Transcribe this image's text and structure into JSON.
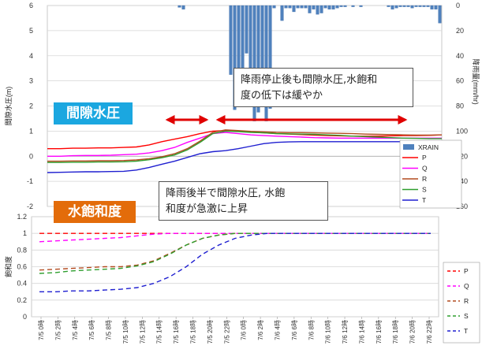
{
  "colors": {
    "rain": "#4F81BD",
    "P": "#FF0000",
    "Q": "#FF00FF",
    "R": "#B24A1E",
    "S": "#2E9E2E",
    "T": "#1F1FD0",
    "arrow": "#E00000",
    "badge_pressure": "#1BA7E0",
    "badge_saturation": "#E36C0A"
  },
  "annotations": {
    "badge_pressure": "間隙水圧",
    "badge_saturation": "水飽和度",
    "note_top_line1": "降雨停止後も間隙水圧,水飽和",
    "note_top_line2": "度の低下は緩やか",
    "note_bottom_line1": "降雨後半で間隙水圧, 水飽",
    "note_bottom_line2": "和度が急激に上昇"
  },
  "chart_data": [
    {
      "type": "line",
      "panel": "pore_pressure",
      "ylabel": "間隙水圧(m)",
      "ylabel2": "降雨量(mm/hr)",
      "ylim": [
        -2,
        6
      ],
      "yticks": [
        -2,
        -1,
        0,
        1,
        2,
        3,
        4,
        5,
        6
      ],
      "y2lim": [
        0,
        160
      ],
      "y2ticks": [
        0,
        20,
        40,
        60,
        80,
        100,
        120,
        140,
        160
      ],
      "rain_series_name": "XRAIN",
      "rain": [
        0,
        0,
        0,
        0,
        0,
        0,
        0,
        0,
        0,
        0,
        0,
        0,
        0,
        0,
        0,
        0,
        0,
        0,
        0,
        0,
        0,
        0,
        0,
        0,
        0,
        0,
        0,
        0,
        0,
        0,
        0,
        0,
        0,
        1.5,
        3,
        0,
        0,
        0,
        0,
        0,
        0,
        0,
        0,
        0,
        0,
        0,
        55,
        83,
        55,
        60,
        38,
        58,
        92,
        85,
        80,
        92,
        82,
        2,
        0,
        12,
        2,
        2,
        5,
        2,
        2,
        2,
        6,
        3,
        7,
        6,
        2,
        3,
        3,
        2,
        1,
        1,
        0,
        1,
        0,
        1,
        0,
        0,
        0,
        0,
        0,
        0,
        1,
        3,
        2,
        1,
        1,
        1,
        2,
        1,
        1,
        1,
        1,
        3,
        3,
        14
      ],
      "series": [
        {
          "name": "P",
          "y": [
            0.3,
            0.3,
            0.32,
            0.32,
            0.33,
            0.33,
            0.35,
            0.37,
            0.45,
            0.58,
            0.68,
            0.78,
            0.9,
            1.0,
            1.02,
            1.0,
            0.96,
            0.93,
            0.9,
            0.88,
            0.86,
            0.84,
            0.82,
            0.81,
            0.8,
            0.8,
            0.8,
            0.81,
            0.82,
            0.82,
            0.83,
            0.85
          ]
        },
        {
          "name": "Q",
          "y": [
            0.0,
            0.0,
            0.02,
            0.03,
            0.03,
            0.04,
            0.06,
            0.08,
            0.13,
            0.22,
            0.35,
            0.55,
            0.72,
            0.9,
            0.95,
            0.9,
            0.85,
            0.82,
            0.8,
            0.78,
            0.76,
            0.74,
            0.73,
            0.72,
            0.72,
            0.72,
            0.72,
            0.72,
            0.72,
            0.72,
            0.72,
            0.72
          ]
        },
        {
          "name": "R",
          "y": [
            -0.2,
            -0.2,
            -0.19,
            -0.19,
            -0.18,
            -0.18,
            -0.17,
            -0.15,
            -0.1,
            -0.02,
            0.1,
            0.3,
            0.6,
            0.95,
            1.05,
            1.02,
            0.99,
            0.97,
            0.95,
            0.94,
            0.94,
            0.93,
            0.92,
            0.91,
            0.9,
            0.88,
            0.87,
            0.86,
            0.85,
            0.84,
            0.84,
            0.85
          ]
        },
        {
          "name": "S",
          "y": [
            -0.25,
            -0.25,
            -0.24,
            -0.24,
            -0.23,
            -0.23,
            -0.22,
            -0.2,
            -0.14,
            -0.06,
            0.05,
            0.25,
            0.55,
            0.9,
            1.0,
            0.98,
            0.95,
            0.93,
            0.9,
            0.89,
            0.88,
            0.87,
            0.85,
            0.83,
            0.8,
            0.78,
            0.76,
            0.74,
            0.72,
            0.71,
            0.7,
            0.7
          ]
        },
        {
          "name": "T",
          "y": [
            -0.65,
            -0.64,
            -0.63,
            -0.62,
            -0.62,
            -0.61,
            -0.6,
            -0.55,
            -0.45,
            -0.32,
            -0.2,
            -0.05,
            0.1,
            0.18,
            0.22,
            0.3,
            0.4,
            0.5,
            0.55,
            0.57,
            0.58,
            0.58,
            0.58,
            0.58,
            0.58,
            0.58,
            0.58,
            0.58,
            0.58,
            0.58,
            0.58,
            0.6
          ]
        }
      ]
    },
    {
      "type": "line",
      "panel": "water_saturation",
      "ylabel": "飽和度",
      "ylim": [
        0,
        1.2
      ],
      "yticks": [
        "0",
        "0.2",
        "0.4",
        "0.6",
        "0.8",
        "1",
        "1.2"
      ],
      "xticks": [
        "7/5 0時",
        "7/5 2時",
        "7/5 4時",
        "7/5 6時",
        "7/5 8時",
        "7/5 10時",
        "7/5 12時",
        "7/5 14時",
        "7/5 16時",
        "7/5 18時",
        "7/5 20時",
        "7/5 22時",
        "7/6 0時",
        "7/6 2時",
        "7/6 4時",
        "7/6 6時",
        "7/6 8時",
        "7/6 10時",
        "7/6 12時",
        "7/6 14時",
        "7/6 16時",
        "7/6 18時",
        "7/6 20時",
        "7/6 22時"
      ],
      "series": [
        {
          "name": "P",
          "y": [
            1.0,
            1.0,
            1.0,
            1.0,
            1.0,
            1.0,
            1.0,
            1.0,
            1.0,
            1.0,
            1.0,
            1.0,
            1.0,
            1.0,
            1.0,
            1.0,
            1.0,
            1.0,
            1.0,
            1.0,
            1.0,
            1.0,
            1.0,
            1.0,
            1.0
          ]
        },
        {
          "name": "Q",
          "y": [
            0.9,
            0.91,
            0.92,
            0.93,
            0.94,
            0.95,
            0.97,
            0.99,
            1.0,
            1.0,
            1.0,
            1.0,
            1.0,
            1.0,
            1.0,
            1.0,
            1.0,
            1.0,
            1.0,
            1.0,
            1.0,
            1.0,
            1.0,
            1.0,
            1.0
          ]
        },
        {
          "name": "R",
          "y": [
            0.56,
            0.57,
            0.58,
            0.59,
            0.6,
            0.6,
            0.62,
            0.67,
            0.76,
            0.86,
            0.94,
            0.98,
            1.0,
            1.0,
            1.0,
            1.0,
            1.0,
            1.0,
            1.0,
            1.0,
            1.0,
            1.0,
            1.0,
            1.0,
            1.0
          ]
        },
        {
          "name": "S",
          "y": [
            0.52,
            0.53,
            0.55,
            0.56,
            0.57,
            0.58,
            0.61,
            0.66,
            0.75,
            0.86,
            0.94,
            0.98,
            1.0,
            1.0,
            1.0,
            1.0,
            1.0,
            1.0,
            1.0,
            1.0,
            1.0,
            1.0,
            1.0,
            1.0,
            1.0
          ]
        },
        {
          "name": "T",
          "y": [
            0.3,
            0.3,
            0.31,
            0.31,
            0.32,
            0.33,
            0.35,
            0.4,
            0.48,
            0.6,
            0.75,
            0.86,
            0.94,
            0.98,
            1.0,
            1.0,
            1.0,
            1.0,
            1.0,
            1.0,
            1.0,
            1.0,
            1.0,
            1.0,
            1.0
          ]
        }
      ]
    }
  ]
}
